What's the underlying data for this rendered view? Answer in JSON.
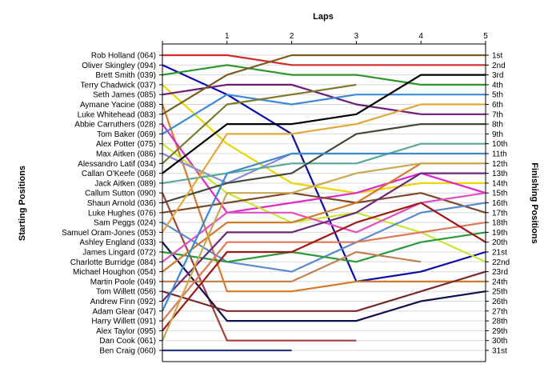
{
  "chart_data": {
    "type": "line",
    "title": "",
    "x_title": "Laps",
    "y_left_title": "Starting Positions",
    "y_right_title": "Finishing Positions",
    "x": [
      0,
      1,
      2,
      3,
      4,
      5
    ],
    "x_tick_labels": [
      "1",
      "2",
      "3",
      "4",
      "5"
    ],
    "y_range": [
      1,
      31
    ],
    "grid": true,
    "legend": "none",
    "finishing_labels": [
      "1st",
      "2nd",
      "3rd",
      "4th",
      "5th",
      "6th",
      "7th",
      "8th",
      "9th",
      "10th",
      "11th",
      "12th",
      "13th",
      "14th",
      "15th",
      "16th",
      "17th",
      "18th",
      "19th",
      "20th",
      "21st",
      "22nd",
      "23rd",
      "24th",
      "25th",
      "26th",
      "27th",
      "28th",
      "29th",
      "30th",
      "31st"
    ],
    "series": [
      {
        "name": "Rob Holland (064)",
        "color": "#d42a2a",
        "positions": [
          1,
          1,
          2,
          2,
          2,
          2
        ]
      },
      {
        "name": "Oliver Skingley (094)",
        "color": "#0c0ca8",
        "positions": [
          2,
          5,
          9,
          24,
          23,
          21
        ]
      },
      {
        "name": "Brett Smith (039)",
        "color": "#2c962c",
        "positions": [
          3,
          2,
          3,
          3,
          4,
          4
        ]
      },
      {
        "name": "Terry Chadwick (037)",
        "color": "#e8d800",
        "positions": [
          4,
          10,
          14,
          15,
          14,
          14
        ]
      },
      {
        "name": "Seth James (085)",
        "color": "#6e1b78",
        "positions": [
          5,
          4,
          4,
          6,
          7,
          7
        ]
      },
      {
        "name": "Aymane Yacine (088)",
        "color": "#d67a2a",
        "positions": [
          6,
          25,
          25,
          24,
          24,
          24
        ]
      },
      {
        "name": "Luke Whitehead (083)",
        "color": "#7a5c1e",
        "positions": [
          7,
          3,
          1,
          1,
          1,
          1
        ]
      },
      {
        "name": "Abbie Carruthers (028)",
        "color": "#e028c8",
        "positions": [
          8,
          17,
          16,
          15,
          13,
          15
        ]
      },
      {
        "name": "Tom Baker (069)",
        "color": "#3a8ad8",
        "positions": [
          9,
          5,
          6,
          5,
          5,
          5
        ]
      },
      {
        "name": "Alex Potter (075)",
        "color": "#c8e830",
        "positions": [
          10,
          15,
          18,
          17,
          19,
          22
        ]
      },
      {
        "name": "Max Aitken (086)",
        "color": "#8a8ad8",
        "positions": [
          11,
          14,
          11,
          11
        ]
      },
      {
        "name": "Alessandro Latif (034)",
        "color": "#7a7a2a",
        "positions": [
          12,
          6,
          5,
          4
        ]
      },
      {
        "name": "Callan O'Keefe (068)",
        "color": "#000000",
        "positions": [
          13,
          8,
          8,
          7,
          3,
          3
        ]
      },
      {
        "name": "Jack Aitken (089)",
        "color": "#5aa89a",
        "positions": [
          14,
          13,
          12,
          12,
          10,
          10
        ]
      },
      {
        "name": "Callum Sutton (090)",
        "color": "#a04040",
        "positions": [
          15,
          30,
          30,
          30
        ]
      },
      {
        "name": "Shaun Arnold (036)",
        "color": "#404a3a",
        "positions": [
          16,
          14,
          13,
          9,
          8,
          8
        ]
      },
      {
        "name": "Luke Hughes (076)",
        "color": "#7a4a2a",
        "positions": [
          17,
          16,
          15,
          16,
          15,
          17
        ]
      },
      {
        "name": "Sam Peggs (024)",
        "color": "#5a8ad0",
        "positions": [
          18,
          22,
          23,
          20,
          17,
          16
        ]
      },
      {
        "name": "Samuel Oram-Jones (053)",
        "color": "#e0a838",
        "positions": [
          19,
          9,
          9,
          8,
          6,
          6
        ]
      },
      {
        "name": "Ashley England (033)",
        "color": "#101050",
        "positions": [
          20,
          28,
          28,
          28,
          26,
          25
        ]
      },
      {
        "name": "James Lingard (072)",
        "color": "#2a9a3a",
        "positions": [
          21,
          22,
          21,
          22,
          20,
          19
        ]
      },
      {
        "name": "Charlotte Burridge (084)",
        "color": "#e050c0",
        "positions": [
          22,
          17,
          17,
          19,
          16,
          15
        ]
      },
      {
        "name": "Michael Houghon (054)",
        "color": "#d07a2a",
        "positions": [
          23,
          18,
          18,
          16,
          12,
          12
        ]
      },
      {
        "name": "Martin Poole (049)",
        "color": "#c08050",
        "positions": [
          24,
          24,
          24,
          21,
          22
        ]
      },
      {
        "name": "Tom Willett (056)",
        "color": "#7a2a2a",
        "positions": [
          25,
          27,
          27,
          27,
          25,
          23
        ]
      },
      {
        "name": "Andrew Finn (092)",
        "color": "#682a78",
        "positions": [
          26,
          19,
          19,
          17,
          13,
          13
        ]
      },
      {
        "name": "Adam Glear (047)",
        "color": "#3a8ad0",
        "positions": [
          27,
          13,
          11,
          11,
          11,
          11
        ]
      },
      {
        "name": "Harry Willett (091)",
        "color": "#e07858",
        "positions": [
          28,
          20,
          20,
          20,
          19,
          18
        ]
      },
      {
        "name": "Alex Taylor (095)",
        "color": "#a01818",
        "positions": [
          29,
          21,
          21,
          18,
          16,
          20
        ]
      },
      {
        "name": "Dan Cook (061)",
        "color": "#c8a850",
        "positions": [
          30,
          15,
          15,
          13,
          12,
          12
        ]
      },
      {
        "name": "Ben Craig (060)",
        "color": "#283880",
        "positions": [
          31,
          31,
          31
        ]
      }
    ]
  }
}
